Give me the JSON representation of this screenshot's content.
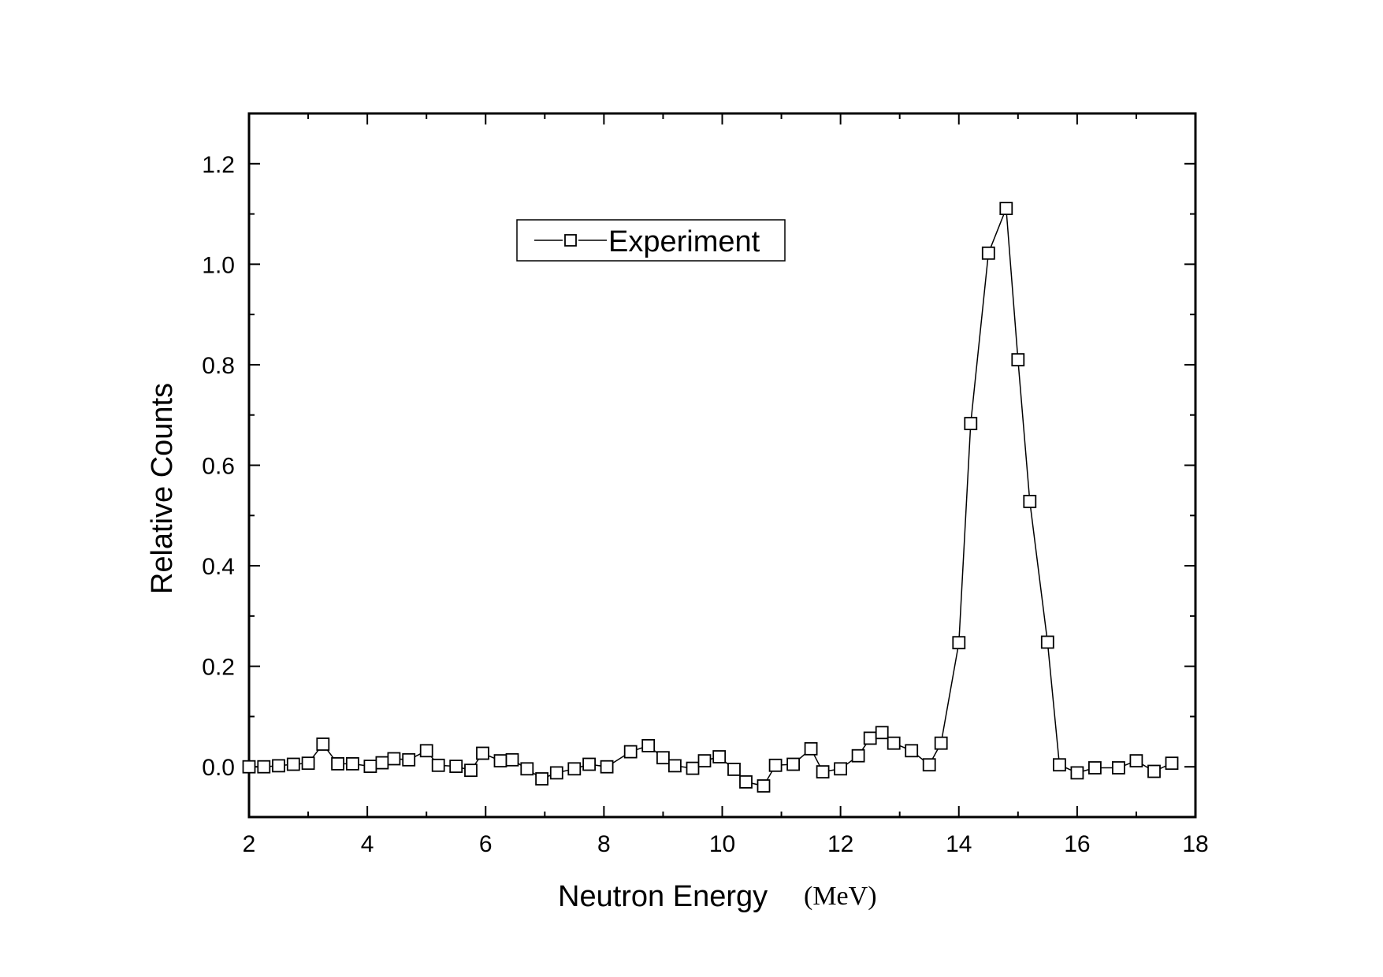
{
  "chart_data": {
    "type": "line",
    "xlabel": "Neutron Energy",
    "xunit": "(MeV)",
    "ylabel": "Relative Counts",
    "xlim": [
      2,
      18
    ],
    "ylim": [
      -0.1,
      1.3
    ],
    "x_ticks": [
      2,
      4,
      6,
      8,
      10,
      12,
      14,
      16,
      18
    ],
    "x_tick_labels": [
      "2",
      "4",
      "6",
      "8",
      "10",
      "12",
      "14",
      "16",
      "18"
    ],
    "y_ticks": [
      0.0,
      0.2,
      0.4,
      0.6,
      0.8,
      1.0,
      1.2
    ],
    "y_tick_labels": [
      "0.0",
      "0.2",
      "0.4",
      "0.6",
      "0.8",
      "1.0",
      "1.2"
    ],
    "grid": false,
    "legend_position": "top-center",
    "series": [
      {
        "name": "Experiment",
        "marker": "open-square",
        "color": "#000000",
        "x": [
          2.0,
          2.25,
          2.5,
          2.75,
          3.0,
          3.25,
          3.5,
          3.75,
          4.05,
          4.25,
          4.45,
          4.7,
          5.0,
          5.2,
          5.5,
          5.75,
          5.95,
          6.25,
          6.45,
          6.7,
          6.95,
          7.2,
          7.5,
          7.75,
          8.05,
          8.45,
          8.75,
          9.0,
          9.2,
          9.5,
          9.7,
          9.95,
          10.2,
          10.4,
          10.7,
          10.9,
          11.2,
          11.5,
          11.7,
          12.0,
          12.3,
          12.5,
          12.7,
          12.9,
          13.2,
          13.5,
          13.7,
          14.0,
          14.2,
          14.5,
          14.8,
          15.0,
          15.2,
          15.5,
          15.7,
          16.0,
          16.3,
          16.7,
          17.0,
          17.3,
          17.6
        ],
        "y": [
          0.0,
          0.0,
          0.002,
          0.005,
          0.007,
          0.045,
          0.006,
          0.006,
          0.001,
          0.008,
          0.016,
          0.014,
          0.032,
          0.003,
          0.001,
          -0.007,
          0.027,
          0.012,
          0.014,
          -0.004,
          -0.024,
          -0.012,
          -0.004,
          0.005,
          0.0,
          0.03,
          0.042,
          0.018,
          0.002,
          -0.003,
          0.012,
          0.02,
          -0.005,
          -0.03,
          -0.038,
          0.003,
          0.005,
          0.036,
          -0.01,
          -0.004,
          0.022,
          0.057,
          0.068,
          0.047,
          0.032,
          0.004,
          0.047,
          0.247,
          0.683,
          1.022,
          1.111,
          0.81,
          0.528,
          0.248,
          0.004,
          -0.012,
          -0.002,
          -0.002,
          0.012,
          -0.009,
          0.007
        ]
      }
    ]
  }
}
